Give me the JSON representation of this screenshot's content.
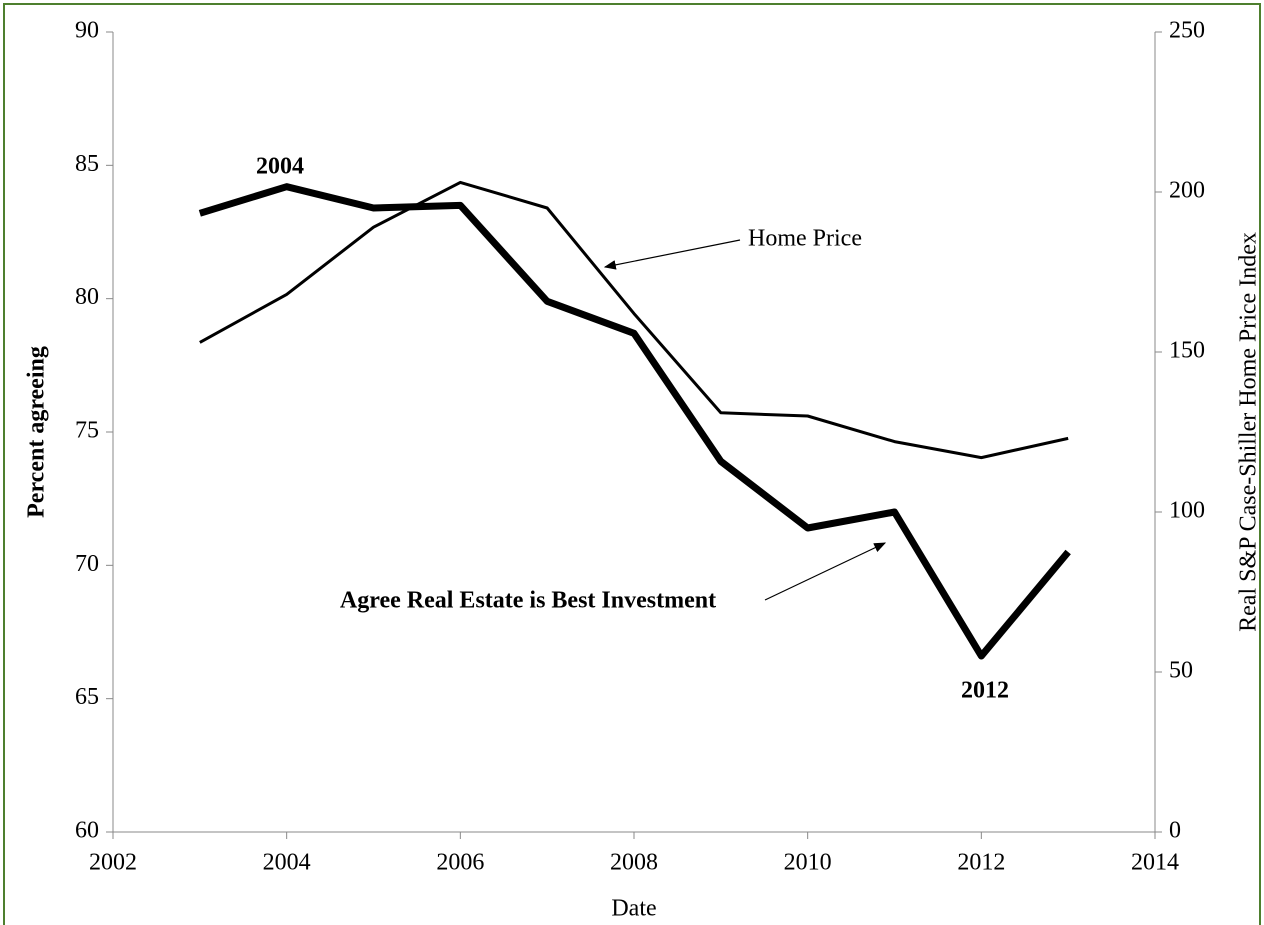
{
  "chart_data": {
    "type": "line",
    "x": [
      2003,
      2004,
      2005,
      2006,
      2007,
      2008,
      2009,
      2010,
      2011,
      2012,
      2013
    ],
    "series": [
      {
        "name": "Agree Real Estate is Best Investment",
        "color": "#000000",
        "values": [
          83.2,
          84.2,
          83.4,
          83.5,
          79.9,
          78.7,
          73.9,
          71.4,
          72.0,
          66.6,
          70.5
        ]
      },
      {
        "name": "Home Price",
        "color": "#000000",
        "axis": "y2",
        "values": [
          153,
          168,
          189,
          203,
          195,
          162,
          131,
          130,
          122,
          117,
          123
        ]
      }
    ],
    "xlabel": "Date",
    "ylabel": "Percent agreeing",
    "y2label": "Real S&P Case-Shiller Home  Price Index",
    "xlim": [
      2002,
      2014
    ],
    "xticks": [
      2002,
      2004,
      2006,
      2008,
      2010,
      2012,
      2014
    ],
    "ylim": [
      60,
      90
    ],
    "yticks": [
      60,
      65,
      70,
      75,
      80,
      85,
      90
    ],
    "y2lim": [
      0,
      250
    ],
    "y2ticks": [
      0,
      50,
      100,
      150,
      200,
      250
    ],
    "annotations": [
      "2004",
      "2012"
    ]
  }
}
